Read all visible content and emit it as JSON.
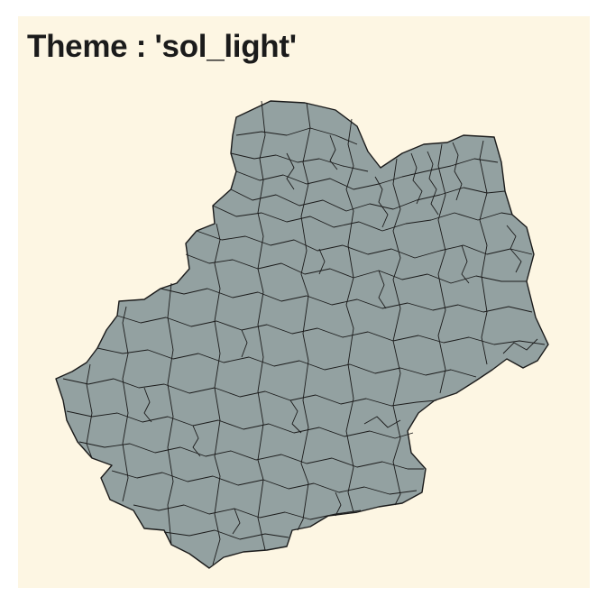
{
  "title": "Theme : 'sol_light'",
  "colors": {
    "background": "#fdf6e3",
    "fill": "#93a1a1",
    "border": "#1b1b1b",
    "page": "#ffffff"
  }
}
